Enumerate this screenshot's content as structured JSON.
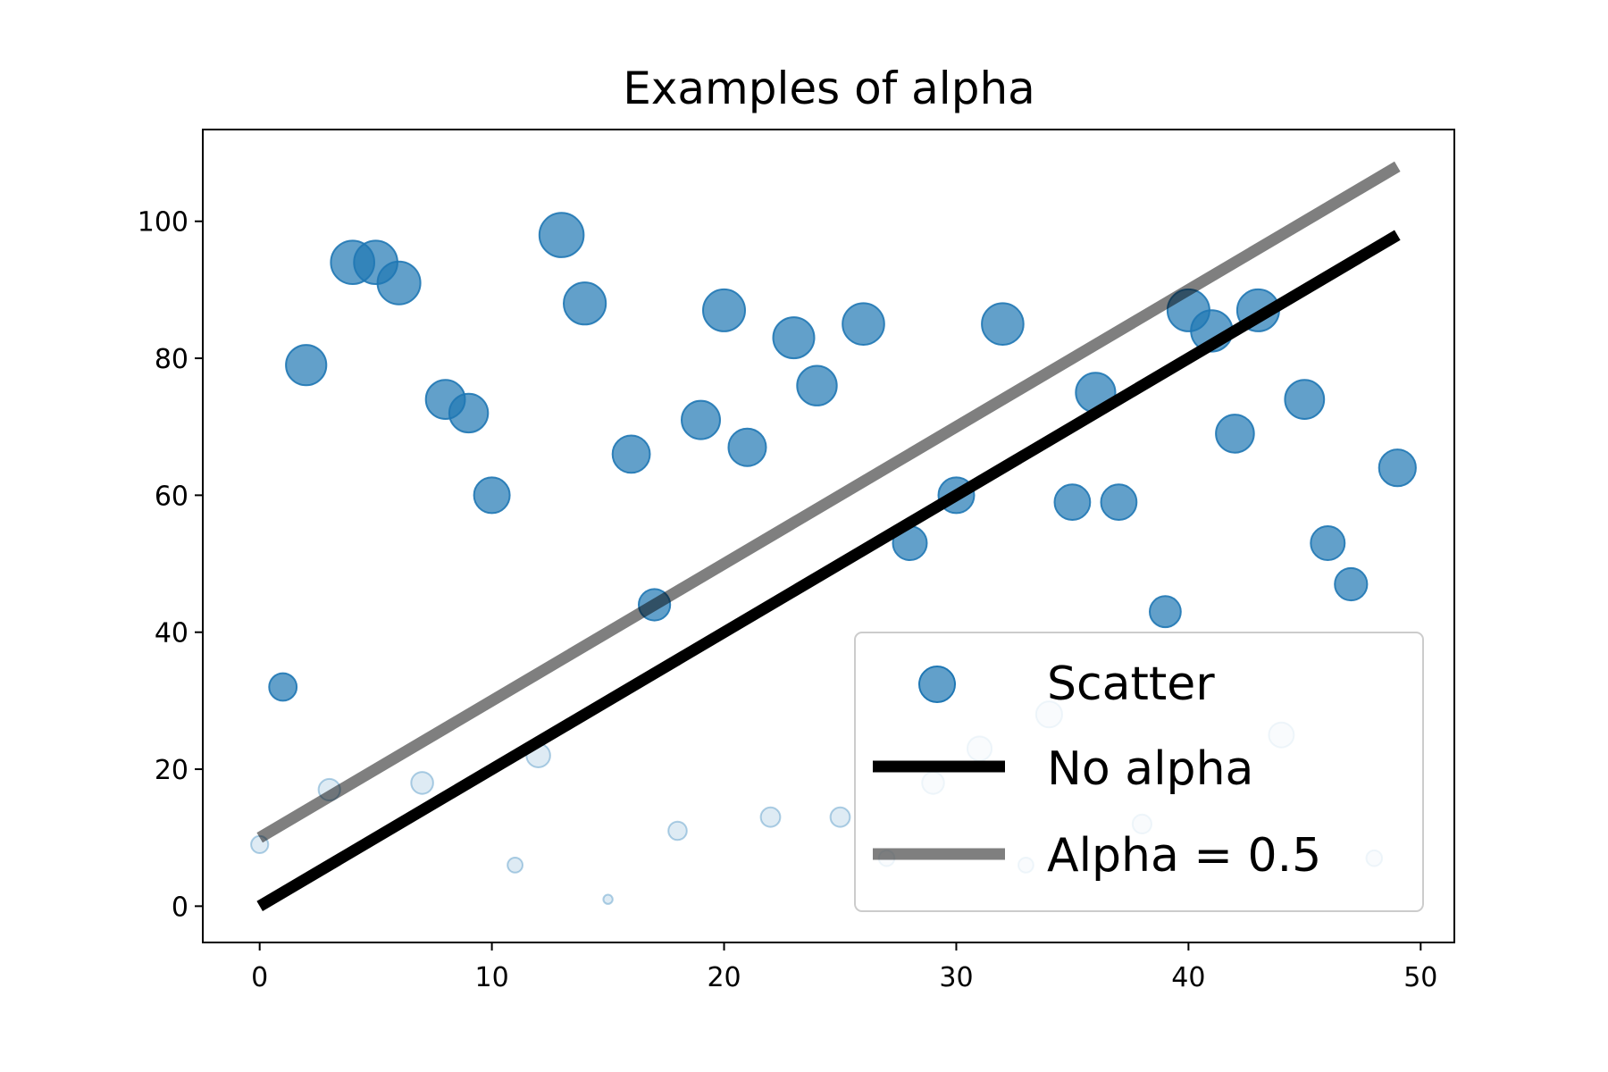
{
  "chart_data": {
    "type": "scatter",
    "title": "Examples of alpha",
    "xlabel": "",
    "ylabel": "",
    "xlim": [
      -2.45,
      51.45
    ],
    "ylim": [
      -5.3,
      113.4
    ],
    "xticks": [
      0,
      10,
      20,
      30,
      40,
      50
    ],
    "yticks": [
      0,
      20,
      40,
      60,
      80,
      100
    ],
    "grid": false,
    "legend_position": "lower right",
    "scatter": {
      "name": "Scatter",
      "color": "#1f77b4",
      "alpha": 0.7,
      "fade_below_y": 30,
      "faded_alpha": 0.15,
      "x": [
        0,
        1,
        2,
        3,
        4,
        5,
        6,
        7,
        8,
        9,
        10,
        11,
        12,
        13,
        14,
        15,
        16,
        17,
        18,
        19,
        20,
        21,
        22,
        23,
        24,
        25,
        26,
        27,
        28,
        29,
        30,
        31,
        32,
        33,
        34,
        35,
        36,
        37,
        38,
        39,
        40,
        41,
        42,
        43,
        44,
        45,
        46,
        47,
        48,
        49
      ],
      "y": [
        9,
        32,
        79,
        17,
        94,
        94,
        91,
        18,
        74,
        72,
        60,
        6,
        22,
        98,
        88,
        1,
        66,
        44,
        11,
        71,
        87,
        67,
        13,
        83,
        76,
        13,
        85,
        7,
        53,
        18,
        60,
        23,
        85,
        6,
        28,
        59,
        75,
        59,
        12,
        43,
        87,
        84,
        69,
        87,
        25,
        74,
        53,
        47,
        7,
        64
      ]
    },
    "lines": [
      {
        "name": "No alpha",
        "color": "#000000",
        "alpha": 1.0,
        "x": [
          0,
          49
        ],
        "y": [
          0,
          98
        ]
      },
      {
        "name": "Alpha = 0.5",
        "color": "#000000",
        "alpha": 0.5,
        "x": [
          0,
          49
        ],
        "y": [
          10,
          108
        ]
      }
    ],
    "legend": [
      "Scatter",
      "No alpha",
      "Alpha = 0.5"
    ]
  }
}
